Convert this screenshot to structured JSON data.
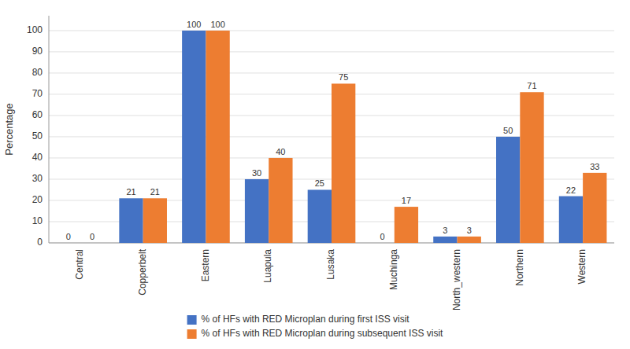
{
  "chart_data": {
    "type": "bar",
    "categories": [
      "Central",
      "Copperbelt",
      "Eastern",
      "Luapula",
      "Lusaka",
      "Muchinga",
      "North_western",
      "Northern",
      "Western"
    ],
    "series": [
      {
        "name": "% of HFs with RED Microplan during first ISS visit",
        "color": "#4472C4",
        "values": [
          0,
          21,
          100,
          30,
          25,
          0,
          3,
          50,
          22
        ]
      },
      {
        "name": "% of HFs with RED Microplan during subsequent ISS visit",
        "color": "#ED7D31",
        "values": [
          0,
          21,
          100,
          40,
          75,
          17,
          3,
          71,
          33
        ]
      }
    ],
    "y_label": "Percentage",
    "ylim": [
      0,
      107
    ],
    "yticks": [
      0,
      10,
      20,
      30,
      40,
      50,
      60,
      70,
      80,
      90,
      100
    ],
    "grid": true,
    "data_labels": true,
    "legend": "bottom"
  }
}
